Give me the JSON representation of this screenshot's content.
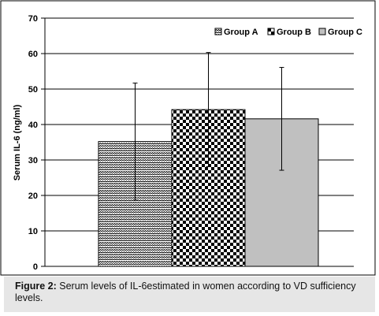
{
  "chart_data": {
    "type": "bar",
    "categories": [
      "Group A",
      "Group B",
      "Group C"
    ],
    "series": [
      {
        "name": "Group A",
        "value": 35.2,
        "error": 16.5
      },
      {
        "name": "Group B",
        "value": 44.2,
        "error": 16.1
      },
      {
        "name": "Group C",
        "value": 41.6,
        "error": 14.5
      }
    ],
    "ylabel": "Serum IL-6 (ng/ml)",
    "ylim": [
      0,
      70
    ],
    "yticks": [
      "0",
      "10",
      "20",
      "30",
      "40",
      "50",
      "60",
      "70"
    ],
    "grid": true,
    "legend_position": "top-right"
  },
  "caption": {
    "label": "Figure 2:",
    "text": " Serum levels of IL-6estimated in women according to VD sufficiency levels."
  }
}
